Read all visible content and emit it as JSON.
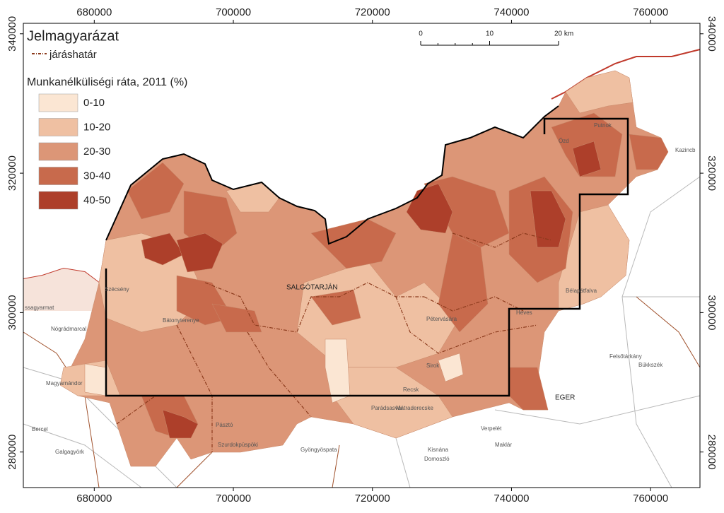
{
  "legend": {
    "title": "Jelmagyarázat",
    "boundary": "járáshatár",
    "subtitle": "Munkanélküliségi ráta, 2011 (%)",
    "classes": [
      {
        "label": "0-10",
        "color": "#fbe6d3"
      },
      {
        "label": "10-20",
        "color": "#efc0a2"
      },
      {
        "label": "20-30",
        "color": "#dc9677"
      },
      {
        "label": "30-40",
        "color": "#c86a4c"
      },
      {
        "label": "40-50",
        "color": "#ad3f2a"
      }
    ]
  },
  "axes": {
    "xlim": [
      669800,
      767100
    ],
    "ylim": [
      274900,
      341500
    ],
    "xticks": [
      680000,
      700000,
      720000,
      740000,
      760000
    ],
    "yticks": [
      280000,
      300000,
      320000,
      340000
    ]
  },
  "scale_bar": {
    "ticks": [
      {
        "value": 0,
        "label": "0"
      },
      {
        "value": 10,
        "label": "10"
      },
      {
        "value": 20,
        "label": "20 km"
      }
    ]
  },
  "places": [
    "SALGÓTARJÁN",
    "EGER",
    "Pásztó",
    "Pétervására",
    "Bélapátfalva",
    "Putnok",
    "Kazincb",
    "Szécsény",
    "ssagyarmat",
    "Bátonyterenye",
    "Ózd",
    "Heves",
    "Parádsasvár",
    "Sirok",
    "Recsk",
    "Mátraderecske",
    "Szurdokpüspöki",
    "Gyöngyöspata",
    "Verpelét",
    "Felsőtárkány",
    "Bükkszék",
    "Maklár",
    "Domoszló",
    "Kisnána",
    "Nógrádmarcal",
    "Magyarnándor",
    "Bercel",
    "Galgagyörk"
  ]
}
